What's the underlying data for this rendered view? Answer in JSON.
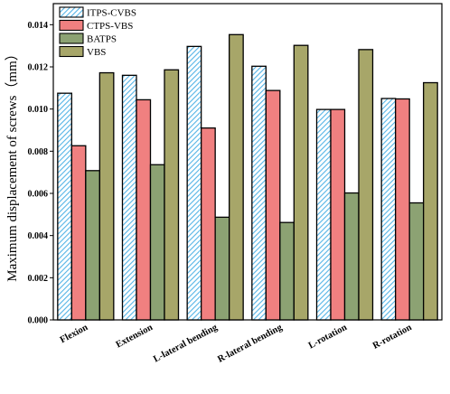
{
  "chart_data": {
    "type": "bar",
    "ylabel": "Maximum displacement of screws（mm）",
    "ylim": [
      0,
      0.015
    ],
    "ytick_values": [
      0.0,
      0.002,
      0.004,
      0.006,
      0.008,
      0.01,
      0.012,
      0.014
    ],
    "ytick_labels": [
      "0.000",
      "0.002",
      "0.004",
      "0.006",
      "0.008",
      "0.010",
      "0.012",
      "0.014"
    ],
    "categories": [
      "Flexion",
      "Extension",
      "L-lateral bending",
      "R-lateral bending",
      "L-rotation",
      "R-rotation"
    ],
    "legend_position": "top-left",
    "series": [
      {
        "name": "ITPS-CVBS",
        "color": "#ffffff",
        "hatch_color": "#55b4e6",
        "pattern": "diagonal-hatch",
        "values": [
          0.01075,
          0.0116,
          0.01297,
          0.01203,
          0.00998,
          0.0105
        ]
      },
      {
        "name": "CTPS-VBS",
        "color": "#f08080",
        "pattern": "solid",
        "values": [
          0.00826,
          0.01044,
          0.0091,
          0.01088,
          0.00998,
          0.01048
        ]
      },
      {
        "name": "BATPS",
        "color": "#8ca273",
        "pattern": "solid",
        "values": [
          0.00708,
          0.00736,
          0.00487,
          0.00462,
          0.00602,
          0.00555
        ]
      },
      {
        "name": "VBS",
        "color": "#a7a669",
        "pattern": "solid",
        "values": [
          0.01172,
          0.01186,
          0.01353,
          0.01302,
          0.01282,
          0.01125
        ]
      }
    ]
  }
}
